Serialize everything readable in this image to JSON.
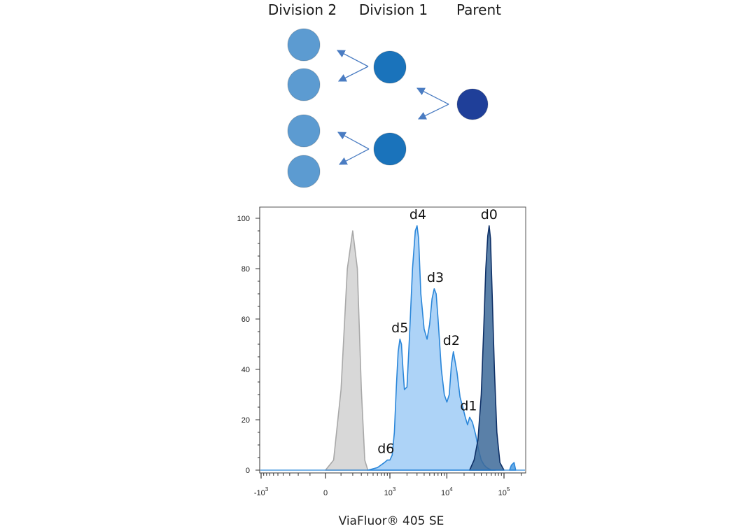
{
  "diagram": {
    "headers": {
      "division2": "Division 2",
      "division1": "Division 1",
      "parent": "Parent"
    },
    "colors": {
      "parent": "#1f3f99",
      "division1": "#1a73bb",
      "division2": "#5c9bd1",
      "arrow": "#4a7cc2"
    },
    "nodes": [
      {
        "id": "parent",
        "generation": 0
      },
      {
        "id": "d1-top",
        "generation": 1
      },
      {
        "id": "d1-bottom",
        "generation": 1
      },
      {
        "id": "d2-1",
        "generation": 2
      },
      {
        "id": "d2-2",
        "generation": 2
      },
      {
        "id": "d2-3",
        "generation": 2
      },
      {
        "id": "d2-4",
        "generation": 2
      }
    ]
  },
  "chart_data": {
    "type": "area",
    "xlabel": "ViaFluor® 405 SE",
    "ylabel": "",
    "x_scale": "biexponential",
    "ylim": [
      0,
      100
    ],
    "yticks": [
      0,
      20,
      40,
      60,
      80,
      100
    ],
    "xticks": [
      {
        "label": "-10",
        "exp": "3",
        "value": -1000
      },
      {
        "label": "0",
        "exp": "",
        "value": 0
      },
      {
        "label": "10",
        "exp": "3",
        "value": 1000
      },
      {
        "label": "10",
        "exp": "4",
        "value": 10000
      },
      {
        "label": "10",
        "exp": "5",
        "value": 100000
      }
    ],
    "series": [
      {
        "role": "unstained",
        "color": "#d6d6d6",
        "stroke": "#a8a8a8",
        "x": [
          0,
          50,
          100,
          150,
          200,
          250,
          300,
          350,
          400
        ],
        "y": [
          0,
          4,
          32,
          80,
          95,
          80,
          32,
          4,
          0
        ]
      },
      {
        "role": "proliferated",
        "color": "#a9d1f7",
        "stroke": "#2a86d9",
        "x": [
          400,
          600,
          800,
          900,
          1000,
          1100,
          1200,
          1300,
          1400,
          1500,
          1600,
          1700,
          1800,
          2000,
          2200,
          2500,
          2800,
          3000,
          3200,
          3500,
          4000,
          4500,
          5000,
          5500,
          6000,
          6500,
          7000,
          8000,
          9000,
          10000,
          11000,
          12000,
          13000,
          15000,
          17000,
          19000,
          21000,
          23000,
          25000,
          28000,
          32000,
          36000,
          40000,
          45000,
          50000,
          60000,
          70000
        ],
        "y": [
          0,
          1,
          3,
          4,
          4,
          6,
          15,
          33,
          47,
          52,
          50,
          40,
          32,
          33,
          52,
          80,
          95,
          97,
          92,
          70,
          56,
          52,
          58,
          68,
          72,
          70,
          60,
          40,
          30,
          27,
          30,
          42,
          47,
          39,
          29,
          25,
          21,
          18,
          21,
          19,
          14,
          8,
          4,
          2,
          1,
          0,
          0
        ]
      },
      {
        "role": "parent",
        "color": "#3d6a99",
        "stroke": "#0d2f66",
        "x": [
          25000,
          30000,
          35000,
          40000,
          44000,
          48000,
          52000,
          55000,
          58000,
          62000,
          68000,
          75000,
          85000,
          100000
        ],
        "y": [
          0,
          4,
          12,
          30,
          55,
          80,
          93,
          97,
          92,
          70,
          40,
          15,
          3,
          0
        ]
      },
      {
        "role": "tail",
        "color": "#5fa6e6",
        "stroke": "#2a86d9",
        "x": [
          125000,
          135000,
          150000,
          160000
        ],
        "y": [
          0,
          2,
          3,
          0
        ]
      }
    ],
    "annotations": [
      {
        "text": "d0",
        "x": 55000,
        "y": 97
      },
      {
        "text": "d1",
        "x": 24000,
        "y": 21
      },
      {
        "text": "d2",
        "x": 12000,
        "y": 47
      },
      {
        "text": "d3",
        "x": 6300,
        "y": 72
      },
      {
        "text": "d4",
        "x": 3100,
        "y": 97
      },
      {
        "text": "d5",
        "x": 1500,
        "y": 52
      },
      {
        "text": "d6",
        "x": 850,
        "y": 4
      }
    ]
  }
}
